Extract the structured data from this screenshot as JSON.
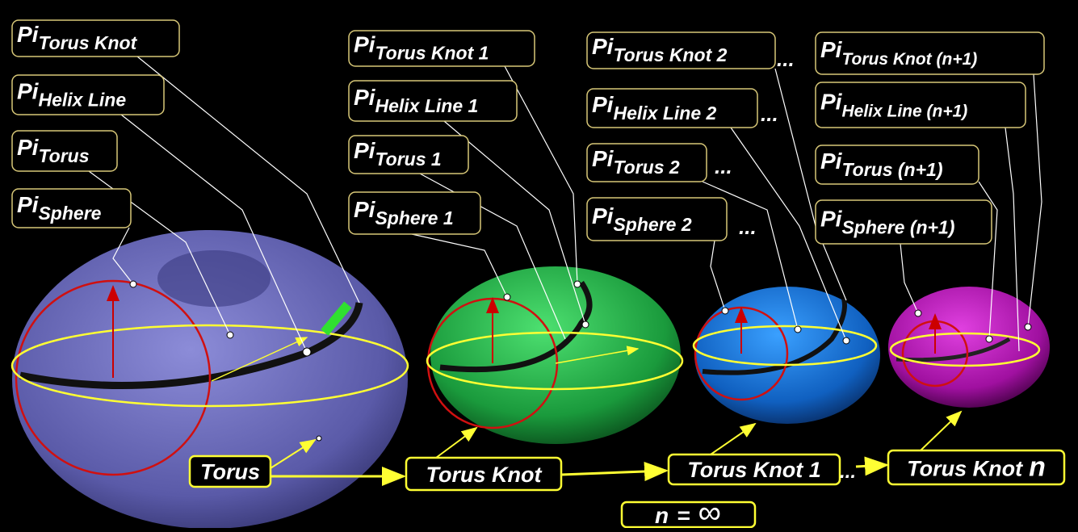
{
  "groups": [
    {
      "labels": [
        {
          "main": "Pi",
          "sub": "Torus Knot"
        },
        {
          "main": "Pi",
          "sub": "Helix Line"
        },
        {
          "main": "Pi",
          "sub": "Torus"
        },
        {
          "main": "Pi",
          "sub": "Sphere"
        }
      ]
    },
    {
      "labels": [
        {
          "main": "Pi",
          "sub": "Torus Knot 1"
        },
        {
          "main": "Pi",
          "sub": "Helix Line 1"
        },
        {
          "main": "Pi",
          "sub": "Torus 1"
        },
        {
          "main": "Pi",
          "sub": "Sphere 1"
        }
      ]
    },
    {
      "labels": [
        {
          "main": "Pi",
          "sub": "Torus Knot 2"
        },
        {
          "main": "Pi",
          "sub": "Helix Line 2"
        },
        {
          "main": "Pi",
          "sub": "Torus 2"
        },
        {
          "main": "Pi",
          "sub": "Sphere 2"
        }
      ]
    },
    {
      "labels": [
        {
          "main": "Pi",
          "sub": "Torus Knot (n+1)"
        },
        {
          "main": "Pi",
          "sub": "Helix Line (n+1)"
        },
        {
          "main": "Pi",
          "sub": "Torus (n+1)"
        },
        {
          "main": "Pi",
          "sub": "Sphere (n+1)"
        }
      ]
    }
  ],
  "ellipsis": "...",
  "sequence": [
    {
      "text": "Torus"
    },
    {
      "text": "Torus Knot"
    },
    {
      "text": "Torus Knot 1"
    },
    {
      "text": "Torus Knot",
      "emphasis": "n"
    }
  ],
  "equation": {
    "lhs": "n",
    "op": "=",
    "rhs": "∞"
  }
}
